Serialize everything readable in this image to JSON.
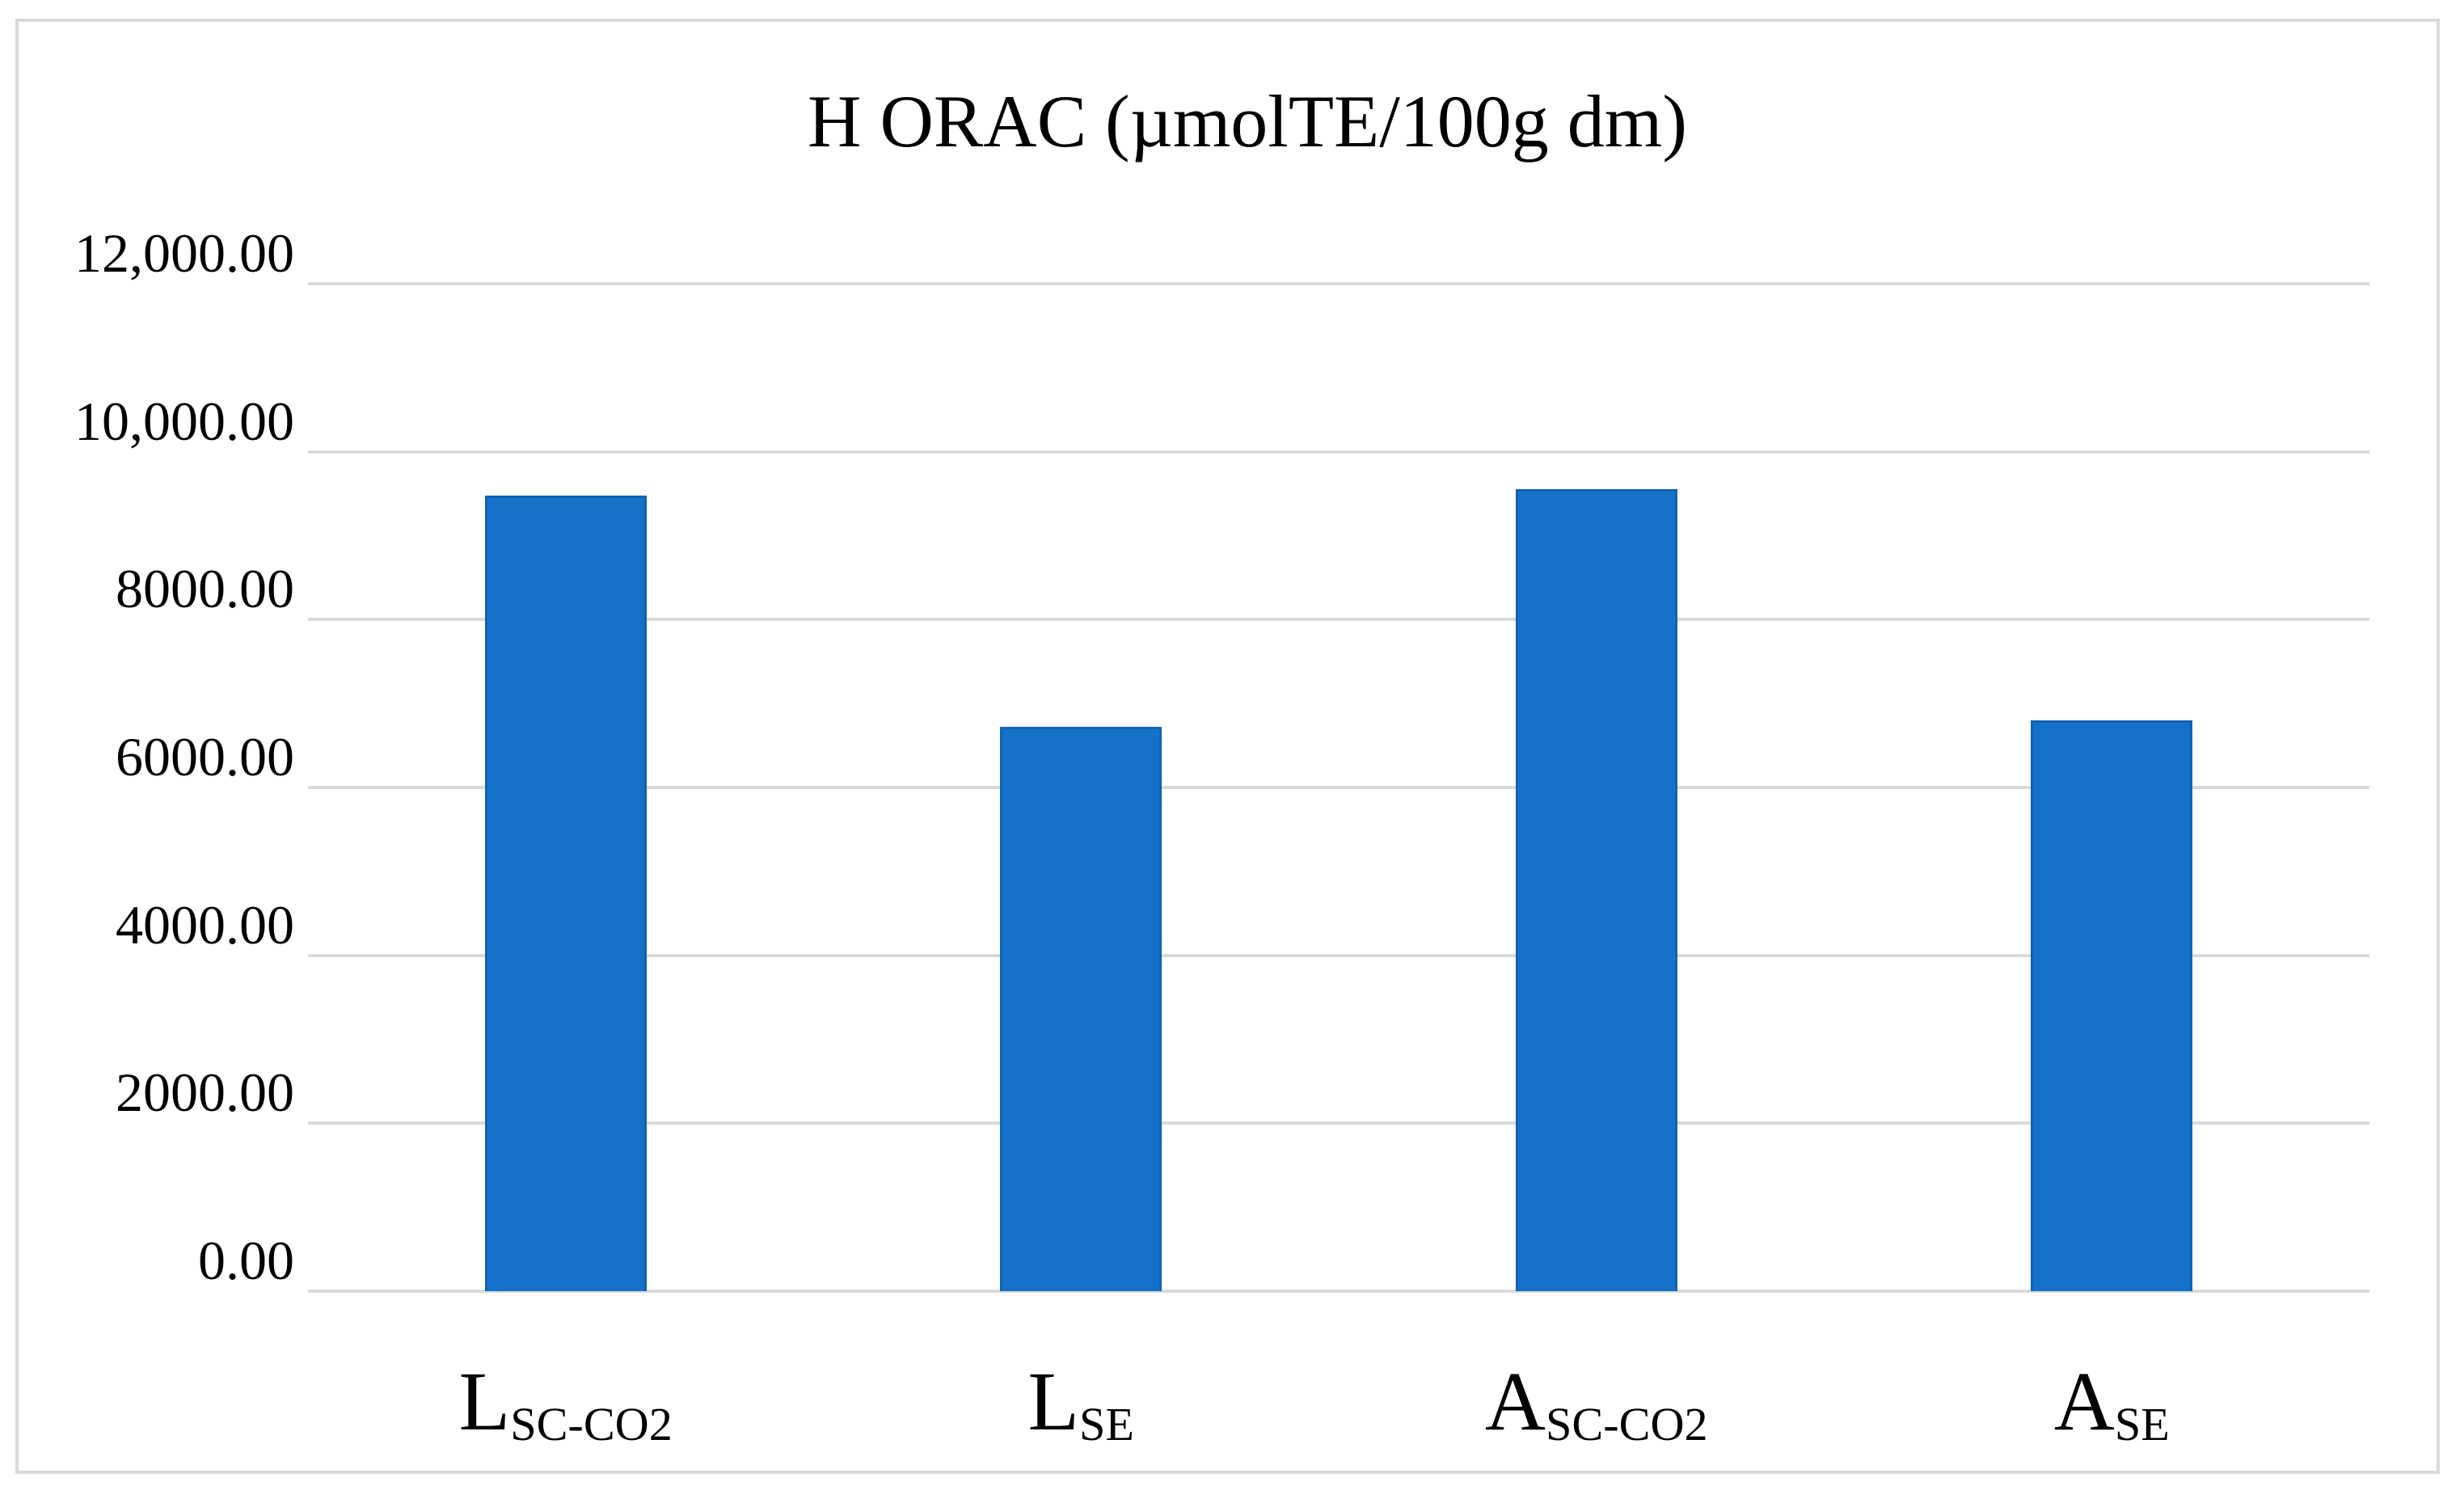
{
  "figure": {
    "background": "#FFFFFF",
    "border_color": "#D9D9D9"
  },
  "chart_data": {
    "type": "bar",
    "title": "H ORAC (µmolTE/100g dm)",
    "categories": [
      {
        "main": "L",
        "sub": "SC-CO2",
        "label_text": "LSC-CO2"
      },
      {
        "main": "L",
        "sub": "SE",
        "label_text": "LSE"
      },
      {
        "main": "A",
        "sub": "SC-CO2",
        "label_text": "ASC-CO2"
      },
      {
        "main": "A",
        "sub": "SE",
        "label_text": "ASE"
      }
    ],
    "values": [
      9480,
      6720,
      9550,
      6800
    ],
    "xlabel": "",
    "ylabel": "",
    "ylim": [
      0,
      12000
    ],
    "y_tick_step": 2000,
    "y_tick_labels": [
      "12,000.00",
      "10,000.00",
      "8000.00",
      "6000.00",
      "4000.00",
      "2000.00",
      "0.00"
    ],
    "y_tick_values": [
      12000,
      10000,
      8000,
      6000,
      4000,
      2000,
      0
    ],
    "grid": "horizontal",
    "legend": "none",
    "bar_color": "#1572C8",
    "bar_border_color": "#0F62B4",
    "gridline_color": "#D9D9D9"
  }
}
